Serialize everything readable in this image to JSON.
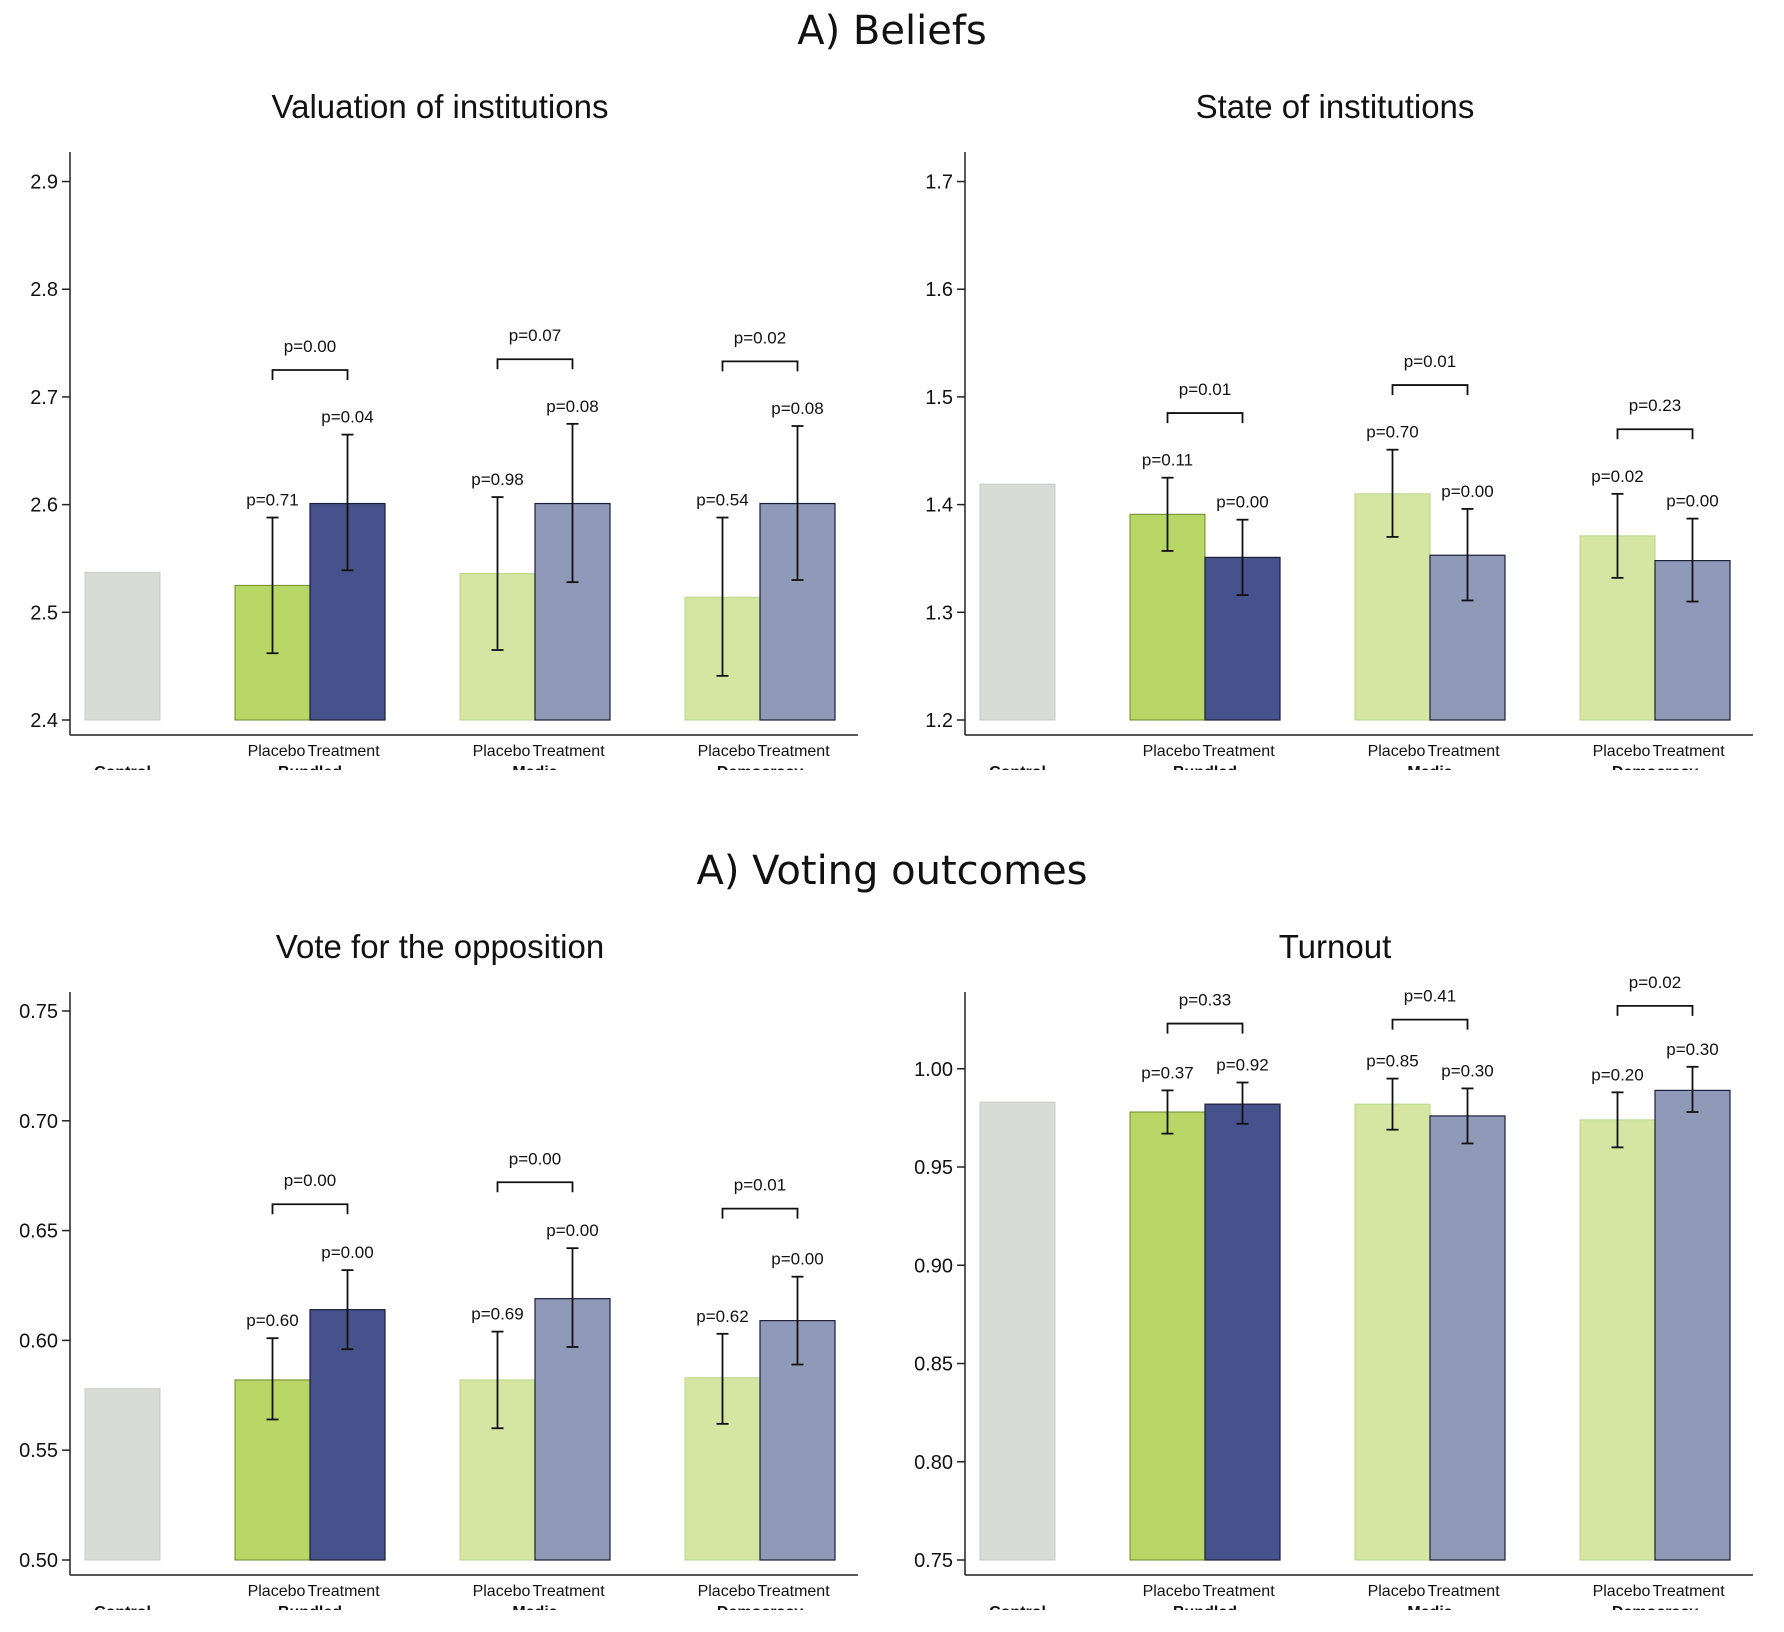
{
  "sections": {
    "beliefs_title": "A) Beliefs",
    "voting_title": "A) Voting outcomes"
  },
  "colors": {
    "control": "#d9dbd6",
    "control_edge": "#c9ccc6",
    "bundled_placebo": "#b8d767",
    "bundled_treatment": "#46528b",
    "other_placebo": "#d5e6a3",
    "other_placebo_edge": "#b9d68a",
    "other_treatment": "#9199b9"
  },
  "chart_data": [
    {
      "type": "bar",
      "title": "Valuation of institutions",
      "ylim": [
        2.4,
        2.92
      ],
      "yticks": [
        2.4,
        2.5,
        2.6,
        2.7,
        2.8,
        2.9
      ],
      "tick_decimals": 1,
      "control": {
        "label": "Control",
        "value": 2.537
      },
      "groups": [
        {
          "name": "Bundled",
          "placebo_label": "Placebo",
          "treatment_label": "Treatment",
          "placebo": {
            "value": 2.525,
            "ci": [
              2.462,
              2.588
            ],
            "p": "p=0.71"
          },
          "treatment": {
            "value": 2.601,
            "ci": [
              2.539,
              2.665
            ],
            "p": "p=0.04"
          },
          "diff_p": "p=0.00",
          "bracket_y": 2.725
        },
        {
          "name": "Media",
          "placebo_label": "Placebo",
          "treatment_label": "Treatment",
          "placebo": {
            "value": 2.536,
            "ci": [
              2.465,
              2.607
            ],
            "p": "p=0.98"
          },
          "treatment": {
            "value": 2.601,
            "ci": [
              2.528,
              2.675
            ],
            "p": "p=0.08"
          },
          "diff_p": "p=0.07",
          "bracket_y": 2.735
        },
        {
          "name": "Democracy",
          "placebo_label": "Placebo",
          "treatment_label": "Treatment",
          "placebo": {
            "value": 2.514,
            "ci": [
              2.441,
              2.588
            ],
            "p": "p=0.54"
          },
          "treatment": {
            "value": 2.601,
            "ci": [
              2.53,
              2.673
            ],
            "p": "p=0.08"
          },
          "diff_p": "p=0.02",
          "bracket_y": 2.733
        }
      ]
    },
    {
      "type": "bar",
      "title": "State of institutions",
      "ylim": [
        1.2,
        1.72
      ],
      "yticks": [
        1.2,
        1.3,
        1.4,
        1.5,
        1.6,
        1.7
      ],
      "tick_decimals": 1,
      "control": {
        "label": "Control",
        "value": 1.419
      },
      "groups": [
        {
          "name": "Bundled",
          "placebo_label": "Placebo",
          "treatment_label": "Treatment",
          "placebo": {
            "value": 1.391,
            "ci": [
              1.357,
              1.425
            ],
            "p": "p=0.11"
          },
          "treatment": {
            "value": 1.351,
            "ci": [
              1.316,
              1.386
            ],
            "p": "p=0.00"
          },
          "diff_p": "p=0.01",
          "bracket_y": 1.485
        },
        {
          "name": "Media",
          "placebo_label": "Placebo",
          "treatment_label": "Treatment",
          "placebo": {
            "value": 1.41,
            "ci": [
              1.37,
              1.451
            ],
            "p": "p=0.70"
          },
          "treatment": {
            "value": 1.353,
            "ci": [
              1.311,
              1.396
            ],
            "p": "p=0.00"
          },
          "diff_p": "p=0.01",
          "bracket_y": 1.511
        },
        {
          "name": "Democracy",
          "placebo_label": "Placebo",
          "treatment_label": "Treatment",
          "placebo": {
            "value": 1.371,
            "ci": [
              1.332,
              1.41
            ],
            "p": "p=0.02"
          },
          "treatment": {
            "value": 1.348,
            "ci": [
              1.31,
              1.387
            ],
            "p": "p=0.00"
          },
          "diff_p": "p=0.23",
          "bracket_y": 1.47
        }
      ]
    },
    {
      "type": "bar",
      "title": "Vote for the opposition",
      "ylim": [
        0.5,
        0.755
      ],
      "yticks": [
        0.5,
        0.55,
        0.6,
        0.65,
        0.7,
        0.75
      ],
      "tick_decimals": 2,
      "control": {
        "label": "Control",
        "value": 0.578
      },
      "groups": [
        {
          "name": "Bundled",
          "placebo_label": "Placebo",
          "treatment_label": "Treatment",
          "placebo": {
            "value": 0.582,
            "ci": [
              0.564,
              0.601
            ],
            "p": "p=0.60"
          },
          "treatment": {
            "value": 0.614,
            "ci": [
              0.596,
              0.632
            ],
            "p": "p=0.00"
          },
          "diff_p": "p=0.00",
          "bracket_y": 0.662
        },
        {
          "name": "Media",
          "placebo_label": "Placebo",
          "treatment_label": "Treatment",
          "placebo": {
            "value": 0.582,
            "ci": [
              0.56,
              0.604
            ],
            "p": "p=0.69"
          },
          "treatment": {
            "value": 0.619,
            "ci": [
              0.597,
              0.642
            ],
            "p": "p=0.00"
          },
          "diff_p": "p=0.00",
          "bracket_y": 0.672
        },
        {
          "name": "Democracy",
          "placebo_label": "Placebo",
          "treatment_label": "Treatment",
          "placebo": {
            "value": 0.583,
            "ci": [
              0.562,
              0.603
            ],
            "p": "p=0.62"
          },
          "treatment": {
            "value": 0.609,
            "ci": [
              0.589,
              0.629
            ],
            "p": "p=0.00"
          },
          "diff_p": "p=0.01",
          "bracket_y": 0.66
        }
      ]
    },
    {
      "type": "bar",
      "title": "Turnout",
      "ylim": [
        0.75,
        1.035
      ],
      "yticks": [
        0.75,
        0.8,
        0.85,
        0.9,
        0.95,
        1.0
      ],
      "tick_decimals": 2,
      "control": {
        "label": "Control",
        "value": 0.983
      },
      "groups": [
        {
          "name": "Bundled",
          "placebo_label": "Placebo",
          "treatment_label": "Treatment",
          "placebo": {
            "value": 0.978,
            "ci": [
              0.967,
              0.989
            ],
            "p": "p=0.37"
          },
          "treatment": {
            "value": 0.982,
            "ci": [
              0.972,
              0.993
            ],
            "p": "p=0.92"
          },
          "diff_p": "p=0.33",
          "bracket_y": 1.023
        },
        {
          "name": "Media",
          "placebo_label": "Placebo",
          "treatment_label": "Treatment",
          "placebo": {
            "value": 0.982,
            "ci": [
              0.969,
              0.995
            ],
            "p": "p=0.85"
          },
          "treatment": {
            "value": 0.976,
            "ci": [
              0.962,
              0.99
            ],
            "p": "p=0.30"
          },
          "diff_p": "p=0.41",
          "bracket_y": 1.025
        },
        {
          "name": "Democracy",
          "placebo_label": "Placebo",
          "treatment_label": "Treatment",
          "placebo": {
            "value": 0.974,
            "ci": [
              0.96,
              0.988
            ],
            "p": "p=0.20"
          },
          "treatment": {
            "value": 0.989,
            "ci": [
              0.978,
              1.001
            ],
            "p": "p=0.30"
          },
          "diff_p": "p=0.02",
          "bracket_y": 1.032
        }
      ]
    }
  ]
}
